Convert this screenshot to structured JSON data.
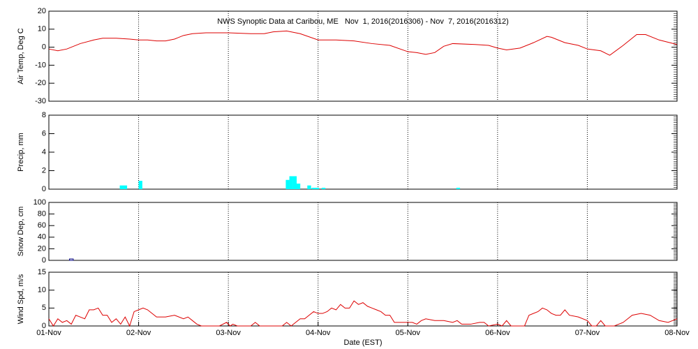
{
  "chart_data": [
    {
      "type": "line",
      "title": "NWS Synoptic Data at Caribou, ME   Nov  1, 2016(2016306) - Nov  7, 2016(2016312)",
      "ylabel": "Air Temp, Deg C",
      "xlim": [
        0,
        7
      ],
      "ylim": [
        -30,
        20
      ],
      "yticks": [
        -30,
        -20,
        -10,
        0,
        10,
        20
      ],
      "series": [
        {
          "color": "#dd0000",
          "x": [
            0,
            0.1,
            0.2,
            0.35,
            0.5,
            0.6,
            0.75,
            0.9,
            1.0,
            1.1,
            1.2,
            1.3,
            1.4,
            1.5,
            1.6,
            1.75,
            2.0,
            2.25,
            2.4,
            2.5,
            2.65,
            2.8,
            3.0,
            3.2,
            3.4,
            3.6,
            3.8,
            4.0,
            4.1,
            4.2,
            4.3,
            4.4,
            4.5,
            4.75,
            4.9,
            5.0,
            5.1,
            5.25,
            5.4,
            5.55,
            5.6,
            5.75,
            5.9,
            6.0,
            6.15,
            6.25,
            6.4,
            6.55,
            6.65,
            6.8,
            7.0
          ],
          "values": [
            -1,
            -2,
            -1,
            2,
            4,
            5,
            5,
            4.5,
            4,
            4,
            3.5,
            3.5,
            4.5,
            6.5,
            7.5,
            8,
            8,
            7.5,
            7.5,
            8.5,
            9,
            7.5,
            4,
            4,
            3.5,
            2,
            1,
            -2.5,
            -3,
            -4,
            -3,
            0.5,
            2,
            1.5,
            1,
            -0.5,
            -1.5,
            -0.5,
            2.5,
            6,
            5.5,
            2.5,
            1,
            -1,
            -2,
            -4.5,
            1,
            7,
            7,
            4,
            1.5
          ]
        }
      ]
    },
    {
      "type": "bar",
      "ylabel": "Precip, mm",
      "xlim": [
        0,
        7
      ],
      "ylim": [
        0,
        8
      ],
      "yticks": [
        0,
        2,
        4,
        6,
        8
      ],
      "series": [
        {
          "color": "#00ffff",
          "x": [
            0.79,
            0.83,
            1.0,
            2.64,
            2.68,
            2.72,
            2.76,
            2.88,
            2.93,
            2.97,
            3.04,
            4.54
          ],
          "values": [
            0.4,
            0.4,
            0.9,
            1.0,
            1.4,
            1.4,
            0.6,
            0.4,
            0.1,
            0.1,
            0.1,
            0.1
          ]
        }
      ]
    },
    {
      "type": "bar",
      "ylabel": "Snow Dep, cm",
      "xlim": [
        0,
        7
      ],
      "ylim": [
        0,
        100
      ],
      "yticks": [
        0,
        20,
        40,
        60,
        80,
        100
      ],
      "series": [
        {
          "color": "#000080",
          "x": [
            0.23
          ],
          "values": [
            1
          ]
        }
      ]
    },
    {
      "type": "line",
      "ylabel": "Wind Spd, m/s",
      "xlabel": "Date (EST)",
      "xlim": [
        0,
        7
      ],
      "ylim": [
        0,
        15
      ],
      "yticks": [
        0,
        5,
        10,
        15
      ],
      "xticks": [
        {
          "value": 0,
          "label": "01-Nov"
        },
        {
          "value": 1,
          "label": "02-Nov"
        },
        {
          "value": 2,
          "label": "03-Nov"
        },
        {
          "value": 3,
          "label": "04-Nov"
        },
        {
          "value": 4,
          "label": "05-Nov"
        },
        {
          "value": 5,
          "label": "06-Nov"
        },
        {
          "value": 6,
          "label": "07-Nov"
        },
        {
          "value": 7,
          "label": "08-Nov"
        }
      ],
      "series": [
        {
          "color": "#dd0000",
          "x": [
            0,
            0.05,
            0.1,
            0.15,
            0.2,
            0.25,
            0.3,
            0.35,
            0.4,
            0.45,
            0.5,
            0.55,
            0.6,
            0.65,
            0.7,
            0.75,
            0.8,
            0.85,
            0.9,
            0.95,
            1.0,
            1.05,
            1.1,
            1.15,
            1.2,
            1.3,
            1.4,
            1.5,
            1.55,
            1.6,
            1.65,
            1.7,
            1.8,
            1.9,
            1.98,
            2.02,
            2.05,
            2.1,
            2.2,
            2.25,
            2.3,
            2.35,
            2.45,
            2.55,
            2.6,
            2.65,
            2.7,
            2.75,
            2.8,
            2.85,
            2.9,
            2.95,
            3.0,
            3.05,
            3.1,
            3.15,
            3.2,
            3.25,
            3.3,
            3.35,
            3.4,
            3.45,
            3.5,
            3.55,
            3.6,
            3.65,
            3.7,
            3.75,
            3.8,
            3.85,
            3.9,
            4.0,
            4.05,
            4.1,
            4.15,
            4.2,
            4.3,
            4.4,
            4.5,
            4.55,
            4.6,
            4.7,
            4.8,
            4.85,
            4.9,
            5.0,
            5.05,
            5.1,
            5.15,
            5.2,
            5.3,
            5.35,
            5.45,
            5.5,
            5.55,
            5.6,
            5.65,
            5.7,
            5.75,
            5.8,
            5.9,
            6.0,
            6.05,
            6.1,
            6.15,
            6.2,
            6.3,
            6.4,
            6.5,
            6.6,
            6.7,
            6.8,
            6.9,
            6.95,
            7.0
          ],
          "values": [
            2,
            0,
            2,
            1,
            1.5,
            0.5,
            3,
            2.5,
            2,
            4.5,
            4.5,
            5,
            3,
            3,
            1,
            2,
            0.5,
            2.5,
            0,
            4,
            4.5,
            5,
            4.5,
            3.5,
            2.5,
            2.5,
            3,
            2,
            2.5,
            1.5,
            0.5,
            0,
            0,
            0,
            1,
            0,
            0.5,
            0,
            0,
            0,
            1,
            0,
            0,
            0,
            0,
            1,
            0,
            1,
            2,
            2,
            3,
            4,
            3.5,
            3.5,
            4,
            5,
            4.5,
            6,
            5,
            5,
            7,
            6,
            6.5,
            5.5,
            5,
            4.5,
            4,
            3,
            3,
            1,
            1,
            1,
            1,
            0.5,
            1.5,
            2,
            1.5,
            1.5,
            1,
            1.5,
            0.5,
            0.5,
            1,
            1,
            0,
            0.5,
            0,
            1.5,
            0,
            0,
            0,
            3,
            4,
            5,
            4.5,
            3.5,
            3,
            3,
            4.5,
            3,
            2.5,
            1.5,
            0,
            0,
            1.5,
            0,
            0,
            1,
            3,
            3.5,
            3,
            1.5,
            1,
            1.5,
            2
          ]
        }
      ]
    }
  ]
}
